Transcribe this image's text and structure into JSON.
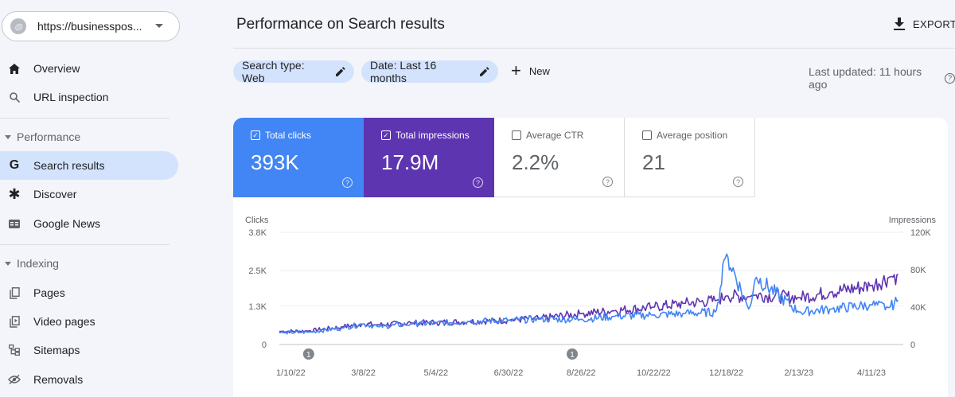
{
  "property": {
    "url": "https://businesspos...",
    "icon": "globe-icon"
  },
  "sidebar": {
    "items": [
      {
        "label": "Overview",
        "icon": "home-icon"
      },
      {
        "label": "URL inspection",
        "icon": "search-icon"
      },
      {
        "label": "Search results",
        "icon": "google-g-icon",
        "active": true
      },
      {
        "label": "Discover",
        "icon": "asterisk-icon"
      },
      {
        "label": "Google News",
        "icon": "news-icon"
      },
      {
        "label": "Pages",
        "icon": "pages-icon"
      },
      {
        "label": "Video pages",
        "icon": "video-pages-icon"
      },
      {
        "label": "Sitemaps",
        "icon": "sitemaps-icon"
      },
      {
        "label": "Removals",
        "icon": "removals-icon"
      }
    ],
    "sections": [
      "Performance",
      "Indexing"
    ]
  },
  "header": {
    "title": "Performance on Search results",
    "export_label": "EXPORT"
  },
  "filters": {
    "search_type": "Search type: Web",
    "date": "Date: Last 16 months",
    "new_label": "New"
  },
  "last_updated": "Last updated: 11 hours ago",
  "metrics": [
    {
      "label": "Total clicks",
      "value": "393K",
      "checked": true,
      "color": "#4285f4"
    },
    {
      "label": "Total impressions",
      "value": "17.9M",
      "checked": true,
      "color": "#5e35b1"
    },
    {
      "label": "Average CTR",
      "value": "2.2%",
      "checked": false
    },
    {
      "label": "Average position",
      "value": "21",
      "checked": false
    }
  ],
  "chart_data": {
    "type": "line",
    "left_axis": {
      "label": "Clicks",
      "ticks": [
        "0",
        "1.3K",
        "2.5K",
        "3.8K"
      ],
      "ylim": [
        0,
        3800
      ]
    },
    "right_axis": {
      "label": "Impressions",
      "ticks": [
        "0",
        "40K",
        "80K",
        "120K"
      ],
      "ylim": [
        0,
        120000
      ]
    },
    "x_tick_labels": [
      "1/10/22",
      "3/8/22",
      "5/4/22",
      "6/30/22",
      "8/26/22",
      "10/22/22",
      "12/18/22",
      "2/13/23",
      "4/11/23"
    ],
    "annotations": [
      {
        "label": "1",
        "x": "1/24/22"
      },
      {
        "label": "1",
        "x": "8/19/22"
      }
    ],
    "series": [
      {
        "name": "Clicks",
        "axis": "left",
        "color": "#4285f4",
        "x": [
          "1/1/22",
          "1/24/22",
          "2/20/22",
          "3/8/22",
          "3/20/22",
          "4/15/22",
          "5/4/22",
          "5/30/22",
          "6/30/22",
          "7/25/22",
          "8/26/22",
          "9/20/22",
          "10/22/22",
          "11/15/22",
          "12/10/22",
          "12/18/22",
          "1/5/23",
          "1/10/23",
          "2/13/23",
          "3/10/23",
          "4/11/23",
          "4/25/23",
          "5/2/23"
        ],
        "values": [
          400,
          420,
          560,
          700,
          600,
          700,
          720,
          780,
          820,
          860,
          850,
          950,
          1000,
          1050,
          1100,
          3100,
          1150,
          2300,
          1100,
          1200,
          1350,
          1250,
          1500
        ]
      },
      {
        "name": "Impressions",
        "axis": "right",
        "color": "#5e35b1",
        "x": [
          "1/1/22",
          "1/24/22",
          "2/20/22",
          "3/8/22",
          "3/20/22",
          "4/15/22",
          "5/4/22",
          "5/30/22",
          "6/30/22",
          "7/25/22",
          "8/26/22",
          "9/20/22",
          "10/22/22",
          "11/15/22",
          "12/10/22",
          "12/18/22",
          "1/5/23",
          "1/10/23",
          "2/13/23",
          "3/10/23",
          "4/11/23",
          "4/25/23",
          "5/2/23"
        ],
        "values": [
          14000,
          14500,
          19000,
          22000,
          21000,
          23000,
          23500,
          24500,
          26000,
          28000,
          33000,
          36000,
          40000,
          44000,
          47000,
          52000,
          51000,
          53000,
          50000,
          56000,
          63000,
          72000,
          75000
        ]
      }
    ]
  }
}
